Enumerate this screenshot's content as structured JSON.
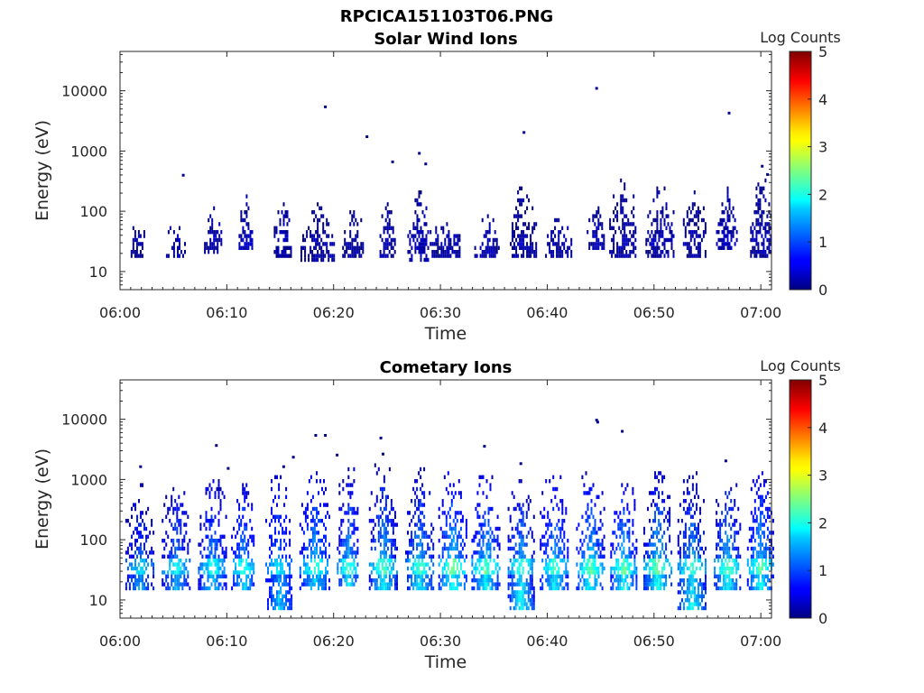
{
  "figure": {
    "suptitle": "RPCICA151103T06.PNG"
  },
  "chart_data": [
    {
      "type": "heatmap",
      "title": "Solar Wind Ions",
      "xlabel": "Time",
      "ylabel": "Energy (eV)",
      "xticks": [
        "06:00",
        "06:10",
        "06:20",
        "06:30",
        "06:40",
        "06:50",
        "07:00"
      ],
      "xlim_minutes": [
        0,
        61
      ],
      "yscale": "log",
      "yticks": [
        "10",
        "100",
        "1000",
        "10000"
      ],
      "ylim_eV": [
        5,
        45000
      ],
      "colorbar": {
        "label": "Log Counts",
        "ticks": [
          "0",
          "1",
          "2",
          "3",
          "4",
          "5"
        ],
        "range": [
          0,
          5
        ],
        "colormap": "jet"
      },
      "level_note": "cells mostly at log counts ~0",
      "bursts": [
        [
          1.6,
          0.6,
          20,
          60,
          0.2
        ],
        [
          5.2,
          0.9,
          20,
          50,
          0.15
        ],
        [
          8.6,
          0.9,
          22,
          80,
          0.2
        ],
        [
          11.7,
          0.6,
          25,
          150,
          0.25
        ],
        [
          15.2,
          0.8,
          20,
          120,
          0.2
        ],
        [
          18.5,
          1.6,
          15,
          80,
          0.2
        ],
        [
          21.8,
          1.0,
          20,
          80,
          0.15
        ],
        [
          25.0,
          0.7,
          20,
          100,
          0.2
        ],
        [
          27.9,
          1.0,
          15,
          150,
          0.25
        ],
        [
          30.5,
          1.5,
          20,
          60,
          0.15
        ],
        [
          34.3,
          1.3,
          20,
          60,
          0.15
        ],
        [
          37.7,
          1.2,
          20,
          150,
          0.2
        ],
        [
          41.0,
          1.2,
          20,
          60,
          0.15
        ],
        [
          44.5,
          0.8,
          25,
          100,
          0.15
        ],
        [
          47.0,
          1.2,
          20,
          200,
          0.2
        ],
        [
          50.5,
          1.3,
          20,
          150,
          0.2
        ],
        [
          53.8,
          1.1,
          20,
          120,
          0.2
        ],
        [
          56.8,
          1.0,
          25,
          150,
          0.2
        ],
        [
          60.0,
          1.0,
          20,
          200,
          0.2
        ]
      ],
      "outliers": [
        [
          19.1,
          5300,
          0.05
        ],
        [
          23.0,
          1700,
          0.05
        ],
        [
          44.5,
          10800,
          0.05
        ],
        [
          37.7,
          2000,
          0.05
        ],
        [
          56.9,
          4200,
          0.05
        ],
        [
          27.9,
          900,
          0.05
        ],
        [
          5.8,
          390,
          0.05
        ],
        [
          28.5,
          600,
          0.05
        ],
        [
          25.4,
          650,
          0.05
        ],
        [
          60.0,
          550,
          0.05
        ],
        [
          60.5,
          400,
          0.05
        ]
      ]
    },
    {
      "type": "heatmap",
      "title": "Cometary Ions",
      "xlabel": "Time",
      "ylabel": "Energy (eV)",
      "xticks": [
        "06:00",
        "06:10",
        "06:20",
        "06:30",
        "06:40",
        "06:50",
        "07:00"
      ],
      "xlim_minutes": [
        0,
        61
      ],
      "yscale": "log",
      "yticks": [
        "10",
        "100",
        "1000",
        "10000"
      ],
      "ylim_eV": [
        5,
        45000
      ],
      "colorbar": {
        "label": "Log Counts",
        "ticks": [
          "0",
          "1",
          "2",
          "3",
          "4",
          "5"
        ],
        "range": [
          0,
          5
        ],
        "colormap": "jet"
      },
      "bursts": [
        [
          1.8,
          1.3,
          15,
          500,
          1.4
        ],
        [
          5.2,
          1.3,
          15,
          500,
          1.5
        ],
        [
          8.6,
          1.3,
          15,
          600,
          1.6
        ],
        [
          11.5,
          1.1,
          15,
          600,
          1.7
        ],
        [
          14.8,
          1.2,
          8,
          700,
          1.6
        ],
        [
          18.2,
          1.4,
          15,
          900,
          1.7
        ],
        [
          21.3,
          1.0,
          20,
          900,
          1.7
        ],
        [
          24.6,
          1.3,
          15,
          1000,
          1.8
        ],
        [
          28.0,
          1.3,
          15,
          900,
          1.8
        ],
        [
          31.1,
          1.3,
          15,
          800,
          2.0
        ],
        [
          34.2,
          1.3,
          15,
          700,
          1.9
        ],
        [
          37.5,
          1.2,
          8,
          600,
          1.9
        ],
        [
          40.6,
          1.3,
          15,
          700,
          1.8
        ],
        [
          44.0,
          1.3,
          15,
          800,
          1.9
        ],
        [
          47.1,
          1.2,
          15,
          700,
          1.9
        ],
        [
          50.3,
          1.3,
          15,
          800,
          2.0
        ],
        [
          53.5,
          1.3,
          8,
          800,
          1.9
        ],
        [
          56.8,
          1.2,
          15,
          800,
          1.9
        ],
        [
          59.9,
          1.2,
          15,
          800,
          1.9
        ]
      ],
      "outliers": [
        [
          1.8,
          1600,
          0.05
        ],
        [
          8.9,
          3600,
          0.05
        ],
        [
          18.2,
          5300,
          0.05
        ],
        [
          19.1,
          5300,
          0.05
        ],
        [
          24.3,
          4800,
          0.05
        ],
        [
          24.5,
          2600,
          0.05
        ],
        [
          34.0,
          3500,
          0.05
        ],
        [
          44.5,
          9500,
          0.05
        ],
        [
          44.6,
          8800,
          0.05
        ],
        [
          46.9,
          6200,
          0.05
        ],
        [
          56.6,
          2000,
          0.05
        ],
        [
          16.1,
          2300,
          0.05
        ],
        [
          15.2,
          1600,
          0.05
        ],
        [
          20.2,
          2500,
          0.05
        ],
        [
          37.4,
          1800,
          0.05
        ],
        [
          10.0,
          1500,
          0.05
        ]
      ]
    }
  ]
}
